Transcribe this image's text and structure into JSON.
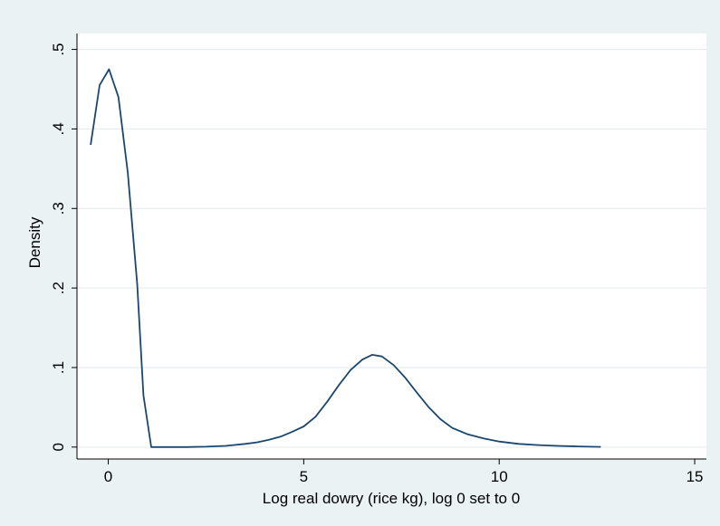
{
  "chart_data": {
    "type": "line",
    "title": "",
    "xlabel": "Log real dowry (rice kg), log 0 set to 0",
    "ylabel": "Density",
    "xlim": [
      -0.8,
      15.3
    ],
    "ylim": [
      -0.015,
      0.52
    ],
    "x_ticks": [
      0,
      5,
      10,
      15
    ],
    "x_tick_labels": [
      "0",
      "5",
      "10",
      "15"
    ],
    "y_ticks": [
      0,
      0.1,
      0.2,
      0.3,
      0.4,
      0.5
    ],
    "y_tick_labels": [
      "0",
      ".1",
      ".2",
      ".3",
      ".4",
      ".5"
    ],
    "grid": "horizontal",
    "legend": "none",
    "colors": {
      "line": "#1a476f",
      "plot_background": "#ffffff",
      "outer_background": "#eaf2f3",
      "grid": "#e3e9ec",
      "axis": "#000000"
    },
    "series": [
      {
        "x": [
          -0.45,
          -0.22,
          0.02,
          0.26,
          0.5,
          0.74,
          0.9,
          1.1,
          1.5,
          2.0,
          2.5,
          3.0,
          3.5,
          3.8,
          4.1,
          4.4,
          4.7,
          5.0,
          5.3,
          5.6,
          5.9,
          6.2,
          6.5,
          6.75,
          7.0,
          7.3,
          7.6,
          7.9,
          8.2,
          8.5,
          8.8,
          9.2,
          9.6,
          10.0,
          10.5,
          11.0,
          11.5,
          12.0,
          12.6
        ],
        "y": [
          0.38,
          0.455,
          0.475,
          0.44,
          0.345,
          0.205,
          0.065,
          0.0,
          0.0,
          0.0,
          0.0005,
          0.0015,
          0.004,
          0.006,
          0.009,
          0.013,
          0.019,
          0.026,
          0.038,
          0.057,
          0.078,
          0.097,
          0.11,
          0.116,
          0.114,
          0.103,
          0.087,
          0.068,
          0.05,
          0.035,
          0.024,
          0.016,
          0.011,
          0.007,
          0.004,
          0.0025,
          0.0015,
          0.0008,
          0.0003
        ]
      }
    ]
  }
}
